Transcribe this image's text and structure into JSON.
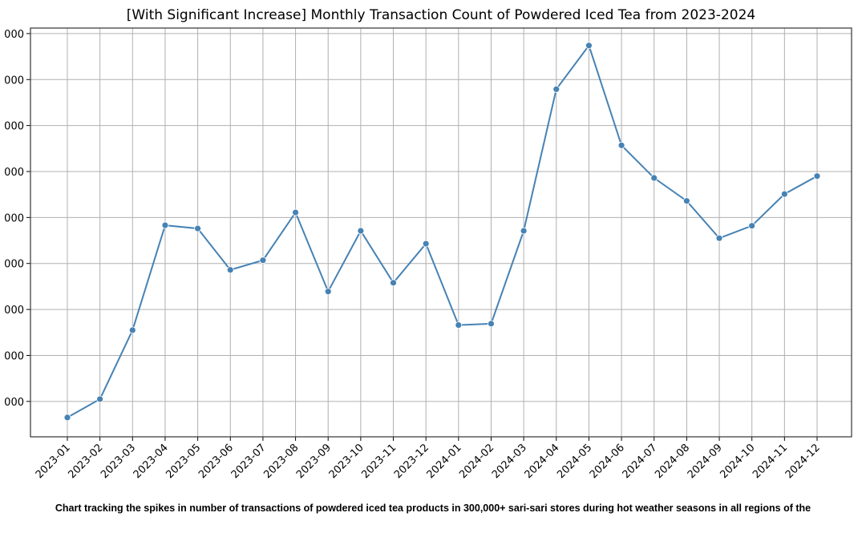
{
  "chart_data": {
    "type": "line",
    "title": "[With Significant Increase] Monthly Transaction Count of Powdered Iced Tea from 2023-2024",
    "xlabel": "",
    "ylabel": "",
    "categories": [
      "2023-01",
      "2023-02",
      "2023-03",
      "2023-04",
      "2023-05",
      "2023-06",
      "2023-07",
      "2023-08",
      "2023-09",
      "2023-10",
      "2023-11",
      "2023-12",
      "2024-01",
      "2024-02",
      "2024-03",
      "2024-04",
      "2024-05",
      "2024-06",
      "2024-07",
      "2024-08",
      "2024-09",
      "2024-10",
      "2024-11",
      "2024-12"
    ],
    "values": [
      0.65,
      1.05,
      2.55,
      4.83,
      4.76,
      3.86,
      4.07,
      5.11,
      3.39,
      4.71,
      3.58,
      4.43,
      2.66,
      2.69,
      4.71,
      7.79,
      8.74,
      6.57,
      5.86,
      5.36,
      4.55,
      4.82,
      5.51,
      5.9
    ],
    "y_ticks": [
      1,
      2,
      3,
      4,
      5,
      6,
      7,
      8,
      9
    ],
    "y_tick_labels": [
      "000",
      "000",
      "000",
      "000",
      "000",
      "000",
      "000",
      "000",
      "000"
    ],
    "ylim": [
      0.23,
      9.12
    ],
    "grid": true,
    "line_color": "#4682b4",
    "marker": "circle"
  },
  "caption": "Chart tracking the spikes in number of transactions of powdered iced tea products in 300,000+ sari-sari stores during hot weather seasons in all regions of the"
}
